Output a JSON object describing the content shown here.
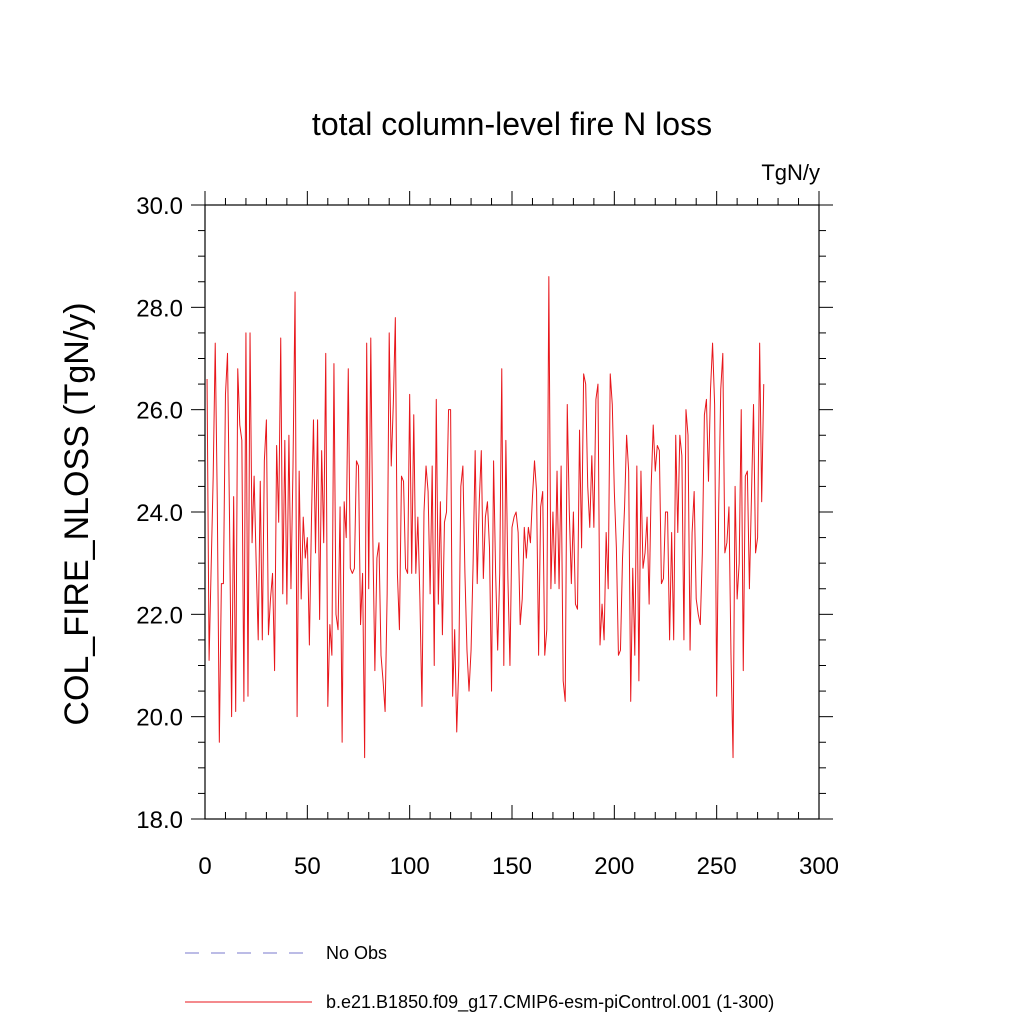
{
  "chart_data": {
    "type": "line",
    "title": "total column-level fire N loss",
    "units": "TgN/y",
    "xlabel": "",
    "ylabel": "COL_FIRE_NLOSS  (TgN/y)",
    "xlim": [
      0,
      300
    ],
    "ylim": [
      18,
      30
    ],
    "x_ticks": [
      0,
      50,
      100,
      150,
      200,
      250,
      300
    ],
    "x_tick_labels": [
      "0",
      "50",
      "100",
      "150",
      "200",
      "250",
      "300"
    ],
    "y_ticks": [
      18,
      20,
      22,
      24,
      26,
      28,
      30
    ],
    "y_tick_labels": [
      "18.0",
      "20.0",
      "22.0",
      "24.0",
      "26.0",
      "28.0",
      "30.0"
    ],
    "grid": false,
    "legend_position": "bottom",
    "series": [
      {
        "name": "No Obs",
        "color": "#7a7acc",
        "dash": "dashed",
        "values": []
      },
      {
        "name": "b.e21.B1850.f09_g17.CMIP6-esm-piControl.001 (1-300)",
        "color": "#e8161b",
        "dash": "solid",
        "x_start": 1,
        "values": [
          26.6,
          21.1,
          22.9,
          24.7,
          27.3,
          24.2,
          19.5,
          22.6,
          22.6,
          26.3,
          27.1,
          23.8,
          20.0,
          24.3,
          20.1,
          26.8,
          25.7,
          25.4,
          20.3,
          27.5,
          20.4,
          27.5,
          23.4,
          24.7,
          23.0,
          21.5,
          24.6,
          21.5,
          25.0,
          25.8,
          21.6,
          22.3,
          22.8,
          20.9,
          25.3,
          23.8,
          27.4,
          22.4,
          25.4,
          22.2,
          25.5,
          22.5,
          24.9,
          28.3,
          20.0,
          24.8,
          22.3,
          23.9,
          23.1,
          23.5,
          21.4,
          23.8,
          25.8,
          23.2,
          25.8,
          21.9,
          25.2,
          23.4,
          27.1,
          20.2,
          21.8,
          21.2,
          26.9,
          22.0,
          21.7,
          24.1,
          19.5,
          24.2,
          23.5,
          26.8,
          22.9,
          22.8,
          22.9,
          25.0,
          24.9,
          21.8,
          22.8,
          19.2,
          27.3,
          22.5,
          27.4,
          23.5,
          20.9,
          23.1,
          23.4,
          21.2,
          20.7,
          20.1,
          22.4,
          27.5,
          24.9,
          26.1,
          27.8,
          22.8,
          21.7,
          24.7,
          24.6,
          22.9,
          22.8,
          26.3,
          22.8,
          25.9,
          22.8,
          23.9,
          22.3,
          20.2,
          24.0,
          24.9,
          24.4,
          22.4,
          24.9,
          21.0,
          26.2,
          22.2,
          24.2,
          21.6,
          23.8,
          24.0,
          26.0,
          26.0,
          20.4,
          21.7,
          19.7,
          21.0,
          24.5,
          24.9,
          22.8,
          21.3,
          20.5,
          21.3,
          23.0,
          25.2,
          22.6,
          24.2,
          25.2,
          22.7,
          23.9,
          24.2,
          23.3,
          20.5,
          25.0,
          22.8,
          21.3,
          22.8,
          26.8,
          21.0,
          25.4,
          22.7,
          21.0,
          23.7,
          23.9,
          24.0,
          23.6,
          21.8,
          22.3,
          23.7,
          23.1,
          23.7,
          23.4,
          24.3,
          25.0,
          24.4,
          21.2,
          24.1,
          24.4,
          21.2,
          21.7,
          28.6,
          22.5,
          24.0,
          22.6,
          24.8,
          22.5,
          24.9,
          20.7,
          20.3,
          26.1,
          24.0,
          22.6,
          24.0,
          22.2,
          22.1,
          25.6,
          23.3,
          26.7,
          26.5,
          24.5,
          23.7,
          25.1,
          23.7,
          26.2,
          26.5,
          21.4,
          22.2,
          21.5,
          23.6,
          22.5,
          26.7,
          26.1,
          24.4,
          23.3,
          21.2,
          21.3,
          23.1,
          24.1,
          25.5,
          24.8,
          20.3,
          22.9,
          21.2,
          24.9,
          20.7,
          24.8,
          22.9,
          23.2,
          23.9,
          22.2,
          24.5,
          25.7,
          24.8,
          25.3,
          25.2,
          22.6,
          22.7,
          24.0,
          24.0,
          21.5,
          23.6,
          21.5,
          25.5,
          23.6,
          25.5,
          25.1,
          21.5,
          26.0,
          25.5,
          21.3,
          23.6,
          24.4,
          22.3,
          22.0,
          21.8,
          23.2,
          25.9,
          26.2,
          24.6,
          26.4,
          27.3,
          26.1,
          20.4,
          24.1,
          26.4,
          27.1,
          23.2,
          23.4,
          24.1,
          21.2,
          19.2,
          24.5,
          22.3,
          23.0,
          26.0,
          20.9,
          24.7,
          24.8,
          22.5,
          24.3,
          26.1,
          23.2,
          23.5,
          27.3,
          24.2,
          26.5
        ]
      }
    ]
  }
}
